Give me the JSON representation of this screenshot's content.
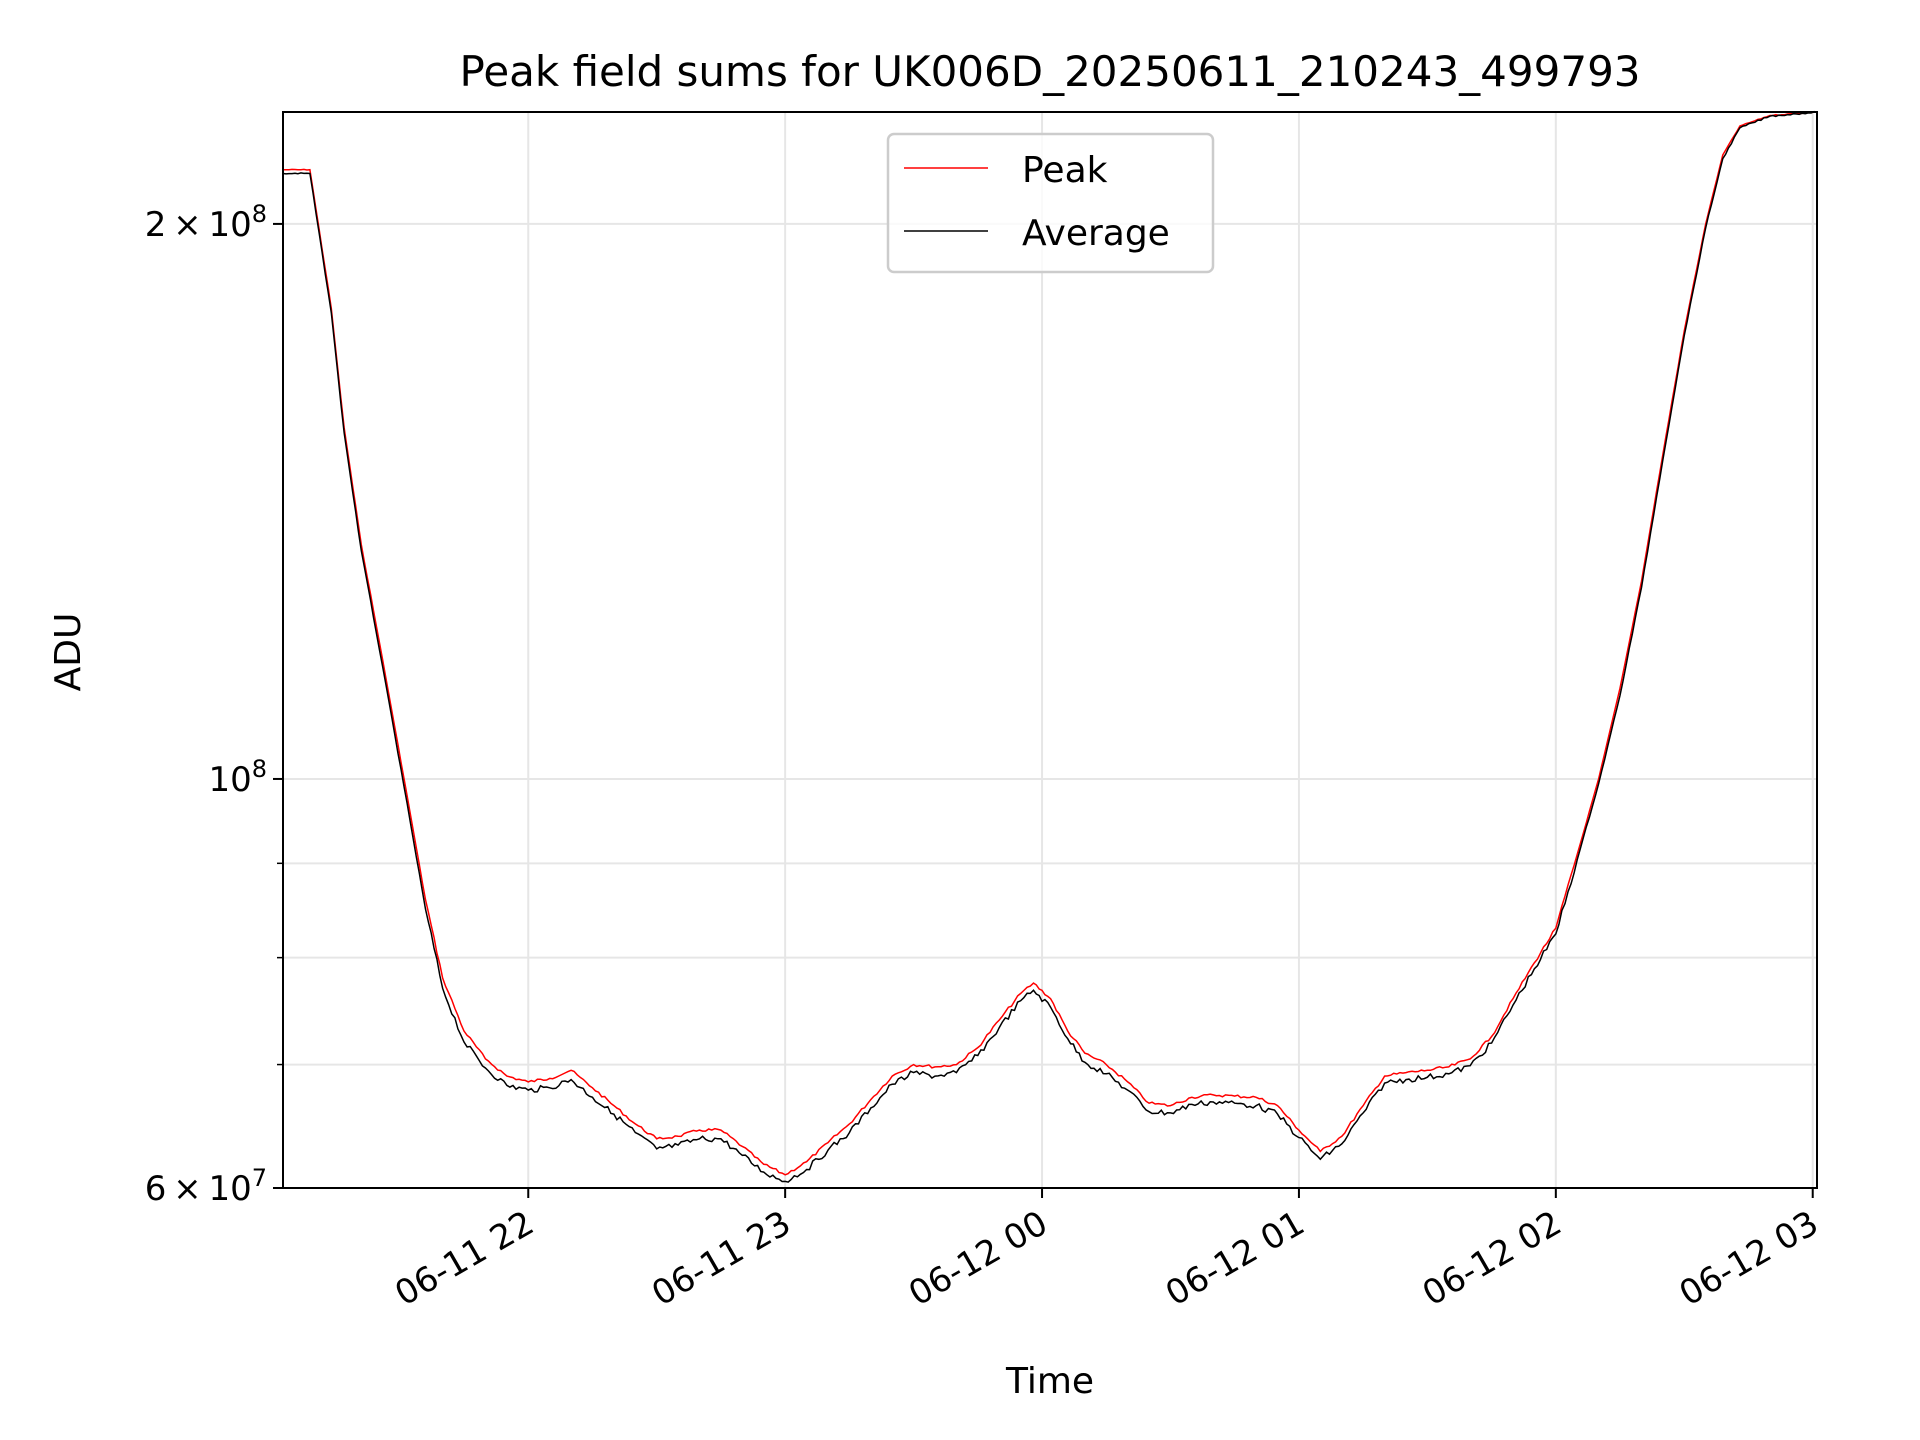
{
  "chart_data": {
    "type": "line",
    "title": "Peak field sums for UK006D_20250611_210243_499793",
    "xlabel": "Time",
    "ylabel": "ADU",
    "x_axis": {
      "kind": "time",
      "range": [
        "2025-06-11T21:02:43",
        "2025-06-12T03:01:00"
      ],
      "ticks": [
        {
          "time": "2025-06-11T22:00:00",
          "label": "06-11 22"
        },
        {
          "time": "2025-06-11T23:00:00",
          "label": "06-11 23"
        },
        {
          "time": "2025-06-12T00:00:00",
          "label": "06-12 00"
        },
        {
          "time": "2025-06-12T01:00:00",
          "label": "06-12 01"
        },
        {
          "time": "2025-06-12T02:00:00",
          "label": "06-12 02"
        },
        {
          "time": "2025-06-12T03:00:00",
          "label": "06-12 03"
        }
      ]
    },
    "y_axis": {
      "scale": "log",
      "range": [
        60000000,
        230000000
      ],
      "major_ticks": [
        {
          "value": 60000000,
          "mantissa": "6",
          "exp": "7"
        },
        {
          "value": 100000000,
          "mantissa": "",
          "exp": "8"
        },
        {
          "value": 200000000,
          "mantissa": "2",
          "exp": "8"
        }
      ],
      "minor_grid": [
        70000000,
        80000000,
        90000000
      ]
    },
    "grid": true,
    "legend_position": "top-center",
    "series": [
      {
        "name": "Peak",
        "color": "#ff0000",
        "points": [
          [
            "2025-06-11T21:02:43",
            214000000
          ],
          [
            "2025-06-11T21:09:00",
            214000000
          ],
          [
            "2025-06-11T21:14:00",
            180000000
          ],
          [
            "2025-06-11T21:17:00",
            155000000
          ],
          [
            "2025-06-11T21:21:00",
            134000000
          ],
          [
            "2025-06-11T21:26:00",
            116000000
          ],
          [
            "2025-06-11T21:31:00",
            100000000
          ],
          [
            "2025-06-11T21:36:00",
            86000000
          ],
          [
            "2025-06-11T21:40:00",
            78000000
          ],
          [
            "2025-06-11T21:45:00",
            73000000
          ],
          [
            "2025-06-11T21:50:00",
            70500000
          ],
          [
            "2025-06-11T21:55:00",
            69000000
          ],
          [
            "2025-06-11T22:00:00",
            68500000
          ],
          [
            "2025-06-11T22:05:00",
            68800000
          ],
          [
            "2025-06-11T22:10:00",
            69500000
          ],
          [
            "2025-06-11T22:15:00",
            68000000
          ],
          [
            "2025-06-11T22:20:00",
            66500000
          ],
          [
            "2025-06-11T22:25:00",
            65000000
          ],
          [
            "2025-06-11T22:30:00",
            63800000
          ],
          [
            "2025-06-11T22:35:00",
            64000000
          ],
          [
            "2025-06-11T22:40:00",
            64500000
          ],
          [
            "2025-06-11T22:45:00",
            64500000
          ],
          [
            "2025-06-11T22:50:00",
            63200000
          ],
          [
            "2025-06-11T22:55:00",
            61800000
          ],
          [
            "2025-06-11T23:00:00",
            61000000
          ],
          [
            "2025-06-11T23:05:00",
            62000000
          ],
          [
            "2025-06-11T23:10:00",
            63500000
          ],
          [
            "2025-06-11T23:15:00",
            65000000
          ],
          [
            "2025-06-11T23:20:00",
            67000000
          ],
          [
            "2025-06-11T23:25:00",
            69000000
          ],
          [
            "2025-06-11T23:30:00",
            70000000
          ],
          [
            "2025-06-11T23:35:00",
            69800000
          ],
          [
            "2025-06-11T23:40:00",
            70000000
          ],
          [
            "2025-06-11T23:45:00",
            71500000
          ],
          [
            "2025-06-11T23:50:00",
            74000000
          ],
          [
            "2025-06-11T23:55:00",
            76500000
          ],
          [
            "2025-06-11T23:58:00",
            77500000
          ],
          [
            "2025-06-12T00:02:00",
            76000000
          ],
          [
            "2025-06-12T00:06:00",
            73000000
          ],
          [
            "2025-06-12T00:10:00",
            71000000
          ],
          [
            "2025-06-12T00:15:00",
            70000000
          ],
          [
            "2025-06-12T00:20:00",
            68500000
          ],
          [
            "2025-06-12T00:25:00",
            66700000
          ],
          [
            "2025-06-12T00:30:00",
            66500000
          ],
          [
            "2025-06-12T00:35:00",
            67200000
          ],
          [
            "2025-06-12T00:40:00",
            67400000
          ],
          [
            "2025-06-12T00:45:00",
            67300000
          ],
          [
            "2025-06-12T00:50:00",
            67200000
          ],
          [
            "2025-06-12T00:55:00",
            66500000
          ],
          [
            "2025-06-12T01:00:00",
            64500000
          ],
          [
            "2025-06-12T01:05:00",
            62800000
          ],
          [
            "2025-06-12T01:10:00",
            64000000
          ],
          [
            "2025-06-12T01:15:00",
            66500000
          ],
          [
            "2025-06-12T01:20:00",
            69000000
          ],
          [
            "2025-06-12T01:25:00",
            69300000
          ],
          [
            "2025-06-12T01:30:00",
            69500000
          ],
          [
            "2025-06-12T01:35:00",
            69800000
          ],
          [
            "2025-06-12T01:40:00",
            70500000
          ],
          [
            "2025-06-12T01:45:00",
            72500000
          ],
          [
            "2025-06-12T01:50:00",
            76000000
          ],
          [
            "2025-06-12T01:55:00",
            79500000
          ],
          [
            "2025-06-12T02:00:00",
            83000000
          ],
          [
            "2025-06-12T02:05:00",
            91000000
          ],
          [
            "2025-06-12T02:10:00",
            100000000
          ],
          [
            "2025-06-12T02:15:00",
            112000000
          ],
          [
            "2025-06-12T02:20:00",
            128000000
          ],
          [
            "2025-06-12T02:25:00",
            150000000
          ],
          [
            "2025-06-12T02:30:00",
            175000000
          ],
          [
            "2025-06-12T02:35:00",
            200000000
          ],
          [
            "2025-06-12T02:39:00",
            218000000
          ],
          [
            "2025-06-12T02:43:00",
            226000000
          ],
          [
            "2025-06-12T02:50:00",
            229000000
          ],
          [
            "2025-06-12T03:01:00",
            230000000
          ]
        ]
      },
      {
        "name": "Average",
        "color": "#000000",
        "points": [
          [
            "2025-06-11T21:02:43",
            213000000
          ],
          [
            "2025-06-11T21:09:00",
            213000000
          ],
          [
            "2025-06-11T21:14:00",
            179000000
          ],
          [
            "2025-06-11T21:17:00",
            154000000
          ],
          [
            "2025-06-11T21:21:00",
            133000000
          ],
          [
            "2025-06-11T21:26:00",
            115000000
          ],
          [
            "2025-06-11T21:31:00",
            99000000
          ],
          [
            "2025-06-11T21:36:00",
            85000000
          ],
          [
            "2025-06-11T21:40:00",
            77000000
          ],
          [
            "2025-06-11T21:45:00",
            72000000
          ],
          [
            "2025-06-11T21:50:00",
            69700000
          ],
          [
            "2025-06-11T21:55:00",
            68200000
          ],
          [
            "2025-06-11T22:00:00",
            67800000
          ],
          [
            "2025-06-11T22:05:00",
            68000000
          ],
          [
            "2025-06-11T22:10:00",
            68700000
          ],
          [
            "2025-06-11T22:15:00",
            67200000
          ],
          [
            "2025-06-11T22:20:00",
            65800000
          ],
          [
            "2025-06-11T22:25:00",
            64300000
          ],
          [
            "2025-06-11T22:30:00",
            63000000
          ],
          [
            "2025-06-11T22:35:00",
            63300000
          ],
          [
            "2025-06-11T22:40:00",
            63800000
          ],
          [
            "2025-06-11T22:45:00",
            63800000
          ],
          [
            "2025-06-11T22:50:00",
            62500000
          ],
          [
            "2025-06-11T22:55:00",
            61200000
          ],
          [
            "2025-06-11T23:00:00",
            60500000
          ],
          [
            "2025-06-11T23:05:00",
            61400000
          ],
          [
            "2025-06-11T23:10:00",
            62900000
          ],
          [
            "2025-06-11T23:15:00",
            64300000
          ],
          [
            "2025-06-11T23:20:00",
            66300000
          ],
          [
            "2025-06-11T23:25:00",
            68300000
          ],
          [
            "2025-06-11T23:30:00",
            69300000
          ],
          [
            "2025-06-11T23:35:00",
            69000000
          ],
          [
            "2025-06-11T23:40:00",
            69300000
          ],
          [
            "2025-06-11T23:45:00",
            70800000
          ],
          [
            "2025-06-11T23:50:00",
            73300000
          ],
          [
            "2025-06-11T23:55:00",
            75800000
          ],
          [
            "2025-06-11T23:58:00",
            76800000
          ],
          [
            "2025-06-12T00:02:00",
            75200000
          ],
          [
            "2025-06-12T00:06:00",
            72300000
          ],
          [
            "2025-06-12T00:10:00",
            70200000
          ],
          [
            "2025-06-12T00:15:00",
            69200000
          ],
          [
            "2025-06-12T00:20:00",
            67800000
          ],
          [
            "2025-06-12T00:25:00",
            66000000
          ],
          [
            "2025-06-12T00:30:00",
            65900000
          ],
          [
            "2025-06-12T00:35:00",
            66600000
          ],
          [
            "2025-06-12T00:40:00",
            66800000
          ],
          [
            "2025-06-12T00:45:00",
            66700000
          ],
          [
            "2025-06-12T00:50:00",
            66500000
          ],
          [
            "2025-06-12T00:55:00",
            65800000
          ],
          [
            "2025-06-12T01:00:00",
            63900000
          ],
          [
            "2025-06-12T01:05:00",
            62200000
          ],
          [
            "2025-06-12T01:10:00",
            63400000
          ],
          [
            "2025-06-12T01:15:00",
            65900000
          ],
          [
            "2025-06-12T01:20:00",
            68400000
          ],
          [
            "2025-06-12T01:25:00",
            68700000
          ],
          [
            "2025-06-12T01:30:00",
            68900000
          ],
          [
            "2025-06-12T01:35:00",
            69200000
          ],
          [
            "2025-06-12T01:40:00",
            69900000
          ],
          [
            "2025-06-12T01:45:00",
            71900000
          ],
          [
            "2025-06-12T01:50:00",
            75400000
          ],
          [
            "2025-06-12T01:55:00",
            78900000
          ],
          [
            "2025-06-12T02:00:00",
            82400000
          ],
          [
            "2025-06-12T02:05:00",
            90400000
          ],
          [
            "2025-06-12T02:10:00",
            99400000
          ],
          [
            "2025-06-12T02:15:00",
            111000000
          ],
          [
            "2025-06-12T02:20:00",
            127000000
          ],
          [
            "2025-06-12T02:25:00",
            149000000
          ],
          [
            "2025-06-12T02:30:00",
            174000000
          ],
          [
            "2025-06-12T02:35:00",
            199000000
          ],
          [
            "2025-06-12T02:39:00",
            217000000
          ],
          [
            "2025-06-12T02:43:00",
            225500000
          ],
          [
            "2025-06-12T02:50:00",
            228800000
          ],
          [
            "2025-06-12T03:01:00",
            230000000
          ]
        ]
      }
    ]
  }
}
